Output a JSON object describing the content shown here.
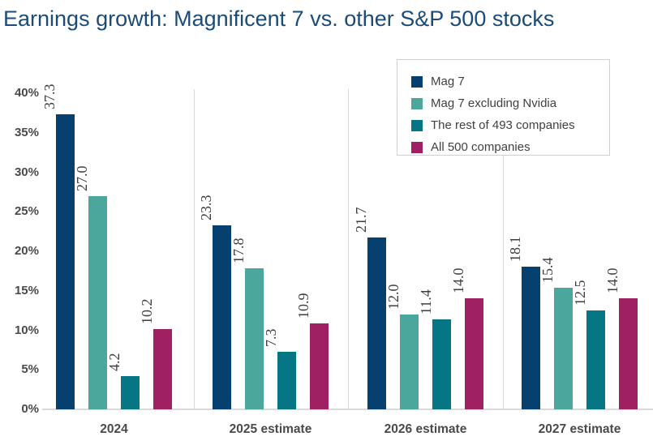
{
  "title": "Earnings growth: Magnificent 7 vs. other S&P 500 stocks",
  "chart_data": {
    "type": "bar",
    "title": "Earnings growth: Magnificent 7 vs. other S&P 500 stocks",
    "categories": [
      "2024",
      "2025 estimate",
      "2026 estimate",
      "2027 estimate"
    ],
    "series": [
      {
        "name": "Mag 7",
        "color": "#05406e",
        "values": [
          37.3,
          23.3,
          21.7,
          18.1
        ]
      },
      {
        "name": "Mag 7 excluding Nvidia",
        "color": "#4ba69c",
        "values": [
          27.0,
          17.8,
          12.0,
          15.4
        ]
      },
      {
        "name": "The rest of 493 companies",
        "color": "#077684",
        "values": [
          4.2,
          7.3,
          11.4,
          12.5
        ]
      },
      {
        "name": "All 500 companies",
        "color": "#a02064",
        "values": [
          10.2,
          10.9,
          14.0,
          14.0
        ]
      }
    ],
    "yticks": [
      "0%",
      "5%",
      "10%",
      "15%",
      "20%",
      "25%",
      "30%",
      "35%",
      "40%"
    ],
    "ytick_values": [
      0,
      5,
      10,
      15,
      20,
      25,
      30,
      35,
      40
    ],
    "ylim": [
      0,
      40
    ],
    "xlabel": "",
    "ylabel": "",
    "value_labels": true,
    "value_label_rotation": 90,
    "legend_position": "top-right",
    "grid": "vertical-group-separators",
    "colors": {
      "title": "#1b4b78",
      "axis_text": "#4a4a4a",
      "value_label_text": "#3d3d3d",
      "gridline": "#d9d9d9",
      "legend_border": "#cfcfcf"
    }
  }
}
